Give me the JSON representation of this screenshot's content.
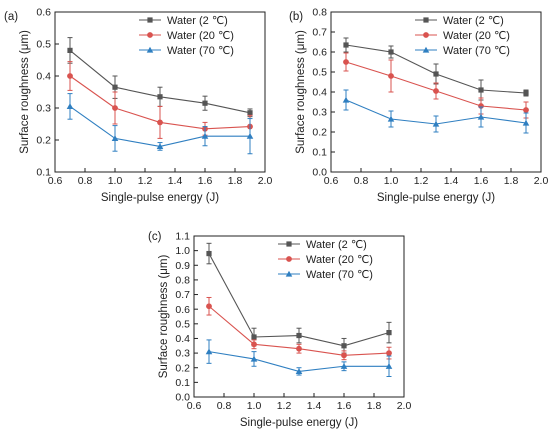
{
  "chart_data": [
    {
      "type": "line",
      "panel_label": "(a)",
      "xlabel": "Single-pulse energy (J)",
      "ylabel": "Surface roughness (μm)",
      "xlim": [
        0.6,
        2.0
      ],
      "ylim": [
        0.1,
        0.6
      ],
      "xticks": [
        "0.6",
        "0.8",
        "1.0",
        "1.2",
        "1.4",
        "1.6",
        "1.8",
        "2.0"
      ],
      "yticks": [
        "0.1",
        "0.2",
        "0.3",
        "0.4",
        "0.5",
        "0.6"
      ],
      "legend_position": "top-right",
      "x": [
        0.7,
        1.0,
        1.3,
        1.6,
        1.9
      ],
      "series": [
        {
          "name": "Water (2 ℃)",
          "color": "#555555",
          "marker": "square",
          "values": [
            0.48,
            0.365,
            0.335,
            0.315,
            0.285
          ],
          "errors": [
            0.04,
            0.035,
            0.03,
            0.022,
            0.012
          ]
        },
        {
          "name": "Water (20 ℃)",
          "color": "#d9534f",
          "marker": "circle",
          "values": [
            0.4,
            0.3,
            0.255,
            0.235,
            0.242
          ],
          "errors": [
            0.045,
            0.05,
            0.05,
            0.02,
            0.035
          ]
        },
        {
          "name": "Water (70 ℃)",
          "color": "#2f7fc1",
          "marker": "triangle",
          "values": [
            0.305,
            0.205,
            0.18,
            0.212,
            0.212
          ],
          "errors": [
            0.04,
            0.04,
            0.012,
            0.03,
            0.055
          ]
        }
      ]
    },
    {
      "type": "line",
      "panel_label": "(b)",
      "xlabel": "Single-pulse energy (J)",
      "ylabel": "Surface roughness (μm)",
      "xlim": [
        0.6,
        2.0
      ],
      "ylim": [
        0.0,
        0.8
      ],
      "xticks": [
        "0.6",
        "0.8",
        "1.0",
        "1.2",
        "1.4",
        "1.6",
        "1.8",
        "2.0"
      ],
      "yticks": [
        "0.0",
        "0.1",
        "0.2",
        "0.3",
        "0.4",
        "0.5",
        "0.6",
        "0.7",
        "0.8"
      ],
      "legend_position": "top-right",
      "x": [
        0.7,
        1.0,
        1.3,
        1.6,
        1.9
      ],
      "series": [
        {
          "name": "Water (2 ℃)",
          "color": "#555555",
          "marker": "square",
          "values": [
            0.635,
            0.6,
            0.49,
            0.41,
            0.395
          ],
          "errors": [
            0.035,
            0.03,
            0.05,
            0.05,
            0.015
          ]
        },
        {
          "name": "Water (20 ℃)",
          "color": "#d9534f",
          "marker": "circle",
          "values": [
            0.55,
            0.48,
            0.405,
            0.33,
            0.31
          ],
          "errors": [
            0.045,
            0.08,
            0.04,
            0.04,
            0.04
          ]
        },
        {
          "name": "Water (70 ℃)",
          "color": "#2f7fc1",
          "marker": "triangle",
          "values": [
            0.36,
            0.265,
            0.24,
            0.275,
            0.245
          ],
          "errors": [
            0.05,
            0.04,
            0.04,
            0.05,
            0.05
          ]
        }
      ]
    },
    {
      "type": "line",
      "panel_label": "(c)",
      "xlabel": "Single-pulse energy (J)",
      "ylabel": "Surface roughness (μm)",
      "xlim": [
        0.6,
        2.0
      ],
      "ylim": [
        0.0,
        1.1
      ],
      "xticks": [
        "0.6",
        "0.8",
        "1.0",
        "1.2",
        "1.4",
        "1.6",
        "1.8",
        "2.0"
      ],
      "yticks": [
        "0.0",
        "0.1",
        "0.2",
        "0.3",
        "0.4",
        "0.5",
        "0.6",
        "0.7",
        "0.8",
        "0.9",
        "1.0",
        "1.1"
      ],
      "legend_position": "top-right",
      "x": [
        0.7,
        1.0,
        1.3,
        1.6,
        1.9
      ],
      "series": [
        {
          "name": "Water (2 ℃)",
          "color": "#555555",
          "marker": "square",
          "values": [
            0.98,
            0.41,
            0.42,
            0.35,
            0.44
          ],
          "errors": [
            0.07,
            0.06,
            0.05,
            0.05,
            0.07
          ]
        },
        {
          "name": "Water (20 ℃)",
          "color": "#d9534f",
          "marker": "circle",
          "values": [
            0.62,
            0.36,
            0.33,
            0.285,
            0.3
          ],
          "errors": [
            0.06,
            0.03,
            0.03,
            0.03,
            0.04
          ]
        },
        {
          "name": "Water (70 ℃)",
          "color": "#2f7fc1",
          "marker": "triangle",
          "values": [
            0.31,
            0.26,
            0.175,
            0.21,
            0.21
          ],
          "errors": [
            0.08,
            0.05,
            0.025,
            0.03,
            0.07
          ]
        }
      ]
    }
  ]
}
